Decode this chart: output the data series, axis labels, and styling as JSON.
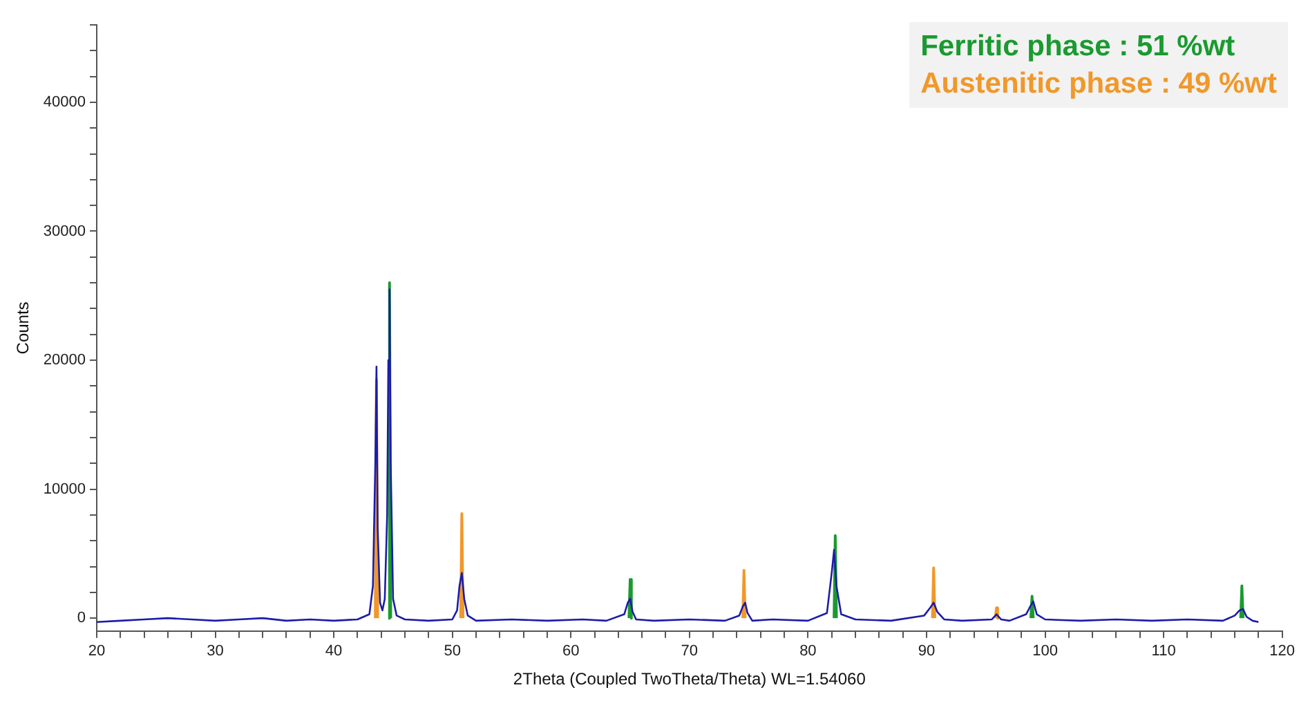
{
  "chart_data": {
    "type": "line",
    "xlabel": "2Theta (Coupled TwoTheta/Theta) WL=1.54060",
    "ylabel": "Counts",
    "xlim": [
      20,
      120
    ],
    "ylim": [
      -1000,
      46000
    ],
    "xticks": [
      20,
      {
        "value": 22,
        "label": null
      },
      {
        "value": 24,
        "label": null
      },
      {
        "value": 26,
        "label": null
      },
      {
        "value": 28,
        "label": null
      },
      30,
      {
        "value": 32,
        "label": null
      },
      {
        "value": 34,
        "label": null
      },
      {
        "value": 36,
        "label": null
      },
      {
        "value": 38,
        "label": null
      },
      40,
      {
        "value": 42,
        "label": null
      },
      {
        "value": 44,
        "label": null
      },
      {
        "value": 46,
        "label": null
      },
      {
        "value": 48,
        "label": null
      },
      50,
      {
        "value": 52,
        "label": null
      },
      {
        "value": 54,
        "label": null
      },
      {
        "value": 56,
        "label": null
      },
      {
        "value": 58,
        "label": null
      },
      60,
      {
        "value": 62,
        "label": null
      },
      {
        "value": 64,
        "label": null
      },
      {
        "value": 66,
        "label": null
      },
      {
        "value": 68,
        "label": null
      },
      70,
      {
        "value": 72,
        "label": null
      },
      {
        "value": 74,
        "label": null
      },
      {
        "value": 76,
        "label": null
      },
      {
        "value": 78,
        "label": null
      },
      80,
      {
        "value": 82,
        "label": null
      },
      {
        "value": 84,
        "label": null
      },
      {
        "value": 86,
        "label": null
      },
      {
        "value": 88,
        "label": null
      },
      90,
      {
        "value": 92,
        "label": null
      },
      {
        "value": 94,
        "label": null
      },
      {
        "value": 96,
        "label": null
      },
      {
        "value": 98,
        "label": null
      },
      100,
      {
        "value": 102,
        "label": null
      },
      {
        "value": 104,
        "label": null
      },
      {
        "value": 106,
        "label": null
      },
      {
        "value": 108,
        "label": null
      },
      110,
      {
        "value": 112,
        "label": null
      },
      {
        "value": 114,
        "label": null
      },
      {
        "value": 116,
        "label": null
      },
      {
        "value": 118,
        "label": null
      },
      120
    ],
    "yticks": [
      0,
      {
        "value": 2000,
        "label": null
      },
      {
        "value": 4000,
        "label": null
      },
      {
        "value": 6000,
        "label": null
      },
      {
        "value": 8000,
        "label": null
      },
      10000,
      {
        "value": 12000,
        "label": null
      },
      {
        "value": 14000,
        "label": null
      },
      {
        "value": 16000,
        "label": null
      },
      {
        "value": 18000,
        "label": null
      },
      20000,
      {
        "value": 22000,
        "label": null
      },
      {
        "value": 24000,
        "label": null
      },
      {
        "value": 26000,
        "label": null
      },
      {
        "value": 28000,
        "label": null
      },
      30000,
      {
        "value": 32000,
        "label": null
      },
      {
        "value": 34000,
        "label": null
      },
      {
        "value": 36000,
        "label": null
      },
      {
        "value": 38000,
        "label": null
      },
      40000,
      {
        "value": 42000,
        "label": null
      },
      {
        "value": 44000,
        "label": null
      },
      {
        "value": 46000,
        "label": null
      }
    ],
    "grid": false,
    "legend": false,
    "marker": "none",
    "line_style": "solid",
    "annotations": [
      "Ferritic phase : 51 %wt",
      "Austenitic phase : 49 %wt"
    ],
    "series": [
      {
        "color": "#1c1ca8",
        "x": [
          20,
          22,
          24,
          26,
          28,
          30,
          32,
          34,
          36,
          38,
          40,
          42,
          43.0,
          43.3,
          43.5,
          43.6,
          43.7,
          43.9,
          44.1,
          44.3,
          44.5,
          44.6,
          44.7,
          44.8,
          45.0,
          45.3,
          46,
          48,
          50,
          50.4,
          50.6,
          50.8,
          51.0,
          51.3,
          52,
          55,
          58,
          61,
          63,
          64.5,
          64.8,
          65.0,
          65.2,
          65.5,
          67,
          70,
          73,
          74.2,
          74.5,
          74.7,
          74.9,
          75.3,
          77,
          80,
          81.6,
          82.0,
          82.2,
          82.4,
          82.8,
          84,
          87,
          89.8,
          90.3,
          90.6,
          90.9,
          91.5,
          93,
          95.5,
          95.9,
          96.3,
          97,
          98.4,
          98.8,
          99.0,
          99.3,
          100,
          103,
          106,
          109,
          112,
          115,
          116.0,
          116.4,
          116.7,
          117.0,
          117.5,
          118
        ],
        "values": [
          -300,
          -200,
          -100,
          0,
          -100,
          -200,
          -100,
          0,
          -200,
          -100,
          -200,
          -100,
          300,
          2500,
          12000,
          19500,
          7000,
          1200,
          600,
          1500,
          8000,
          20000,
          25500,
          12000,
          1500,
          200,
          -100,
          -200,
          -100,
          600,
          2500,
          3500,
          1500,
          200,
          -200,
          -100,
          -200,
          -100,
          -200,
          300,
          1200,
          1500,
          500,
          -100,
          -200,
          -100,
          -200,
          200,
          900,
          1200,
          400,
          -200,
          -100,
          -200,
          400,
          3500,
          5300,
          2500,
          300,
          -100,
          -200,
          200,
          800,
          1200,
          500,
          -100,
          -200,
          -100,
          300,
          -100,
          -200,
          300,
          1000,
          1300,
          300,
          -100,
          -200,
          -100,
          -200,
          -100,
          -200,
          200,
          600,
          700,
          100,
          -200,
          -300
        ]
      },
      {
        "color": "#1a9a30",
        "x": [
          44.6,
          44.7,
          44.8,
          null,
          64.9,
          65.0,
          65.1,
          null,
          82.2,
          82.3,
          82.4,
          null,
          98.8,
          98.9,
          99.0,
          null,
          116.5,
          116.6,
          116.7
        ],
        "values": [
          0,
          26000,
          0,
          null,
          0,
          3000,
          0,
          null,
          0,
          6400,
          0,
          null,
          0,
          1700,
          0,
          null,
          0,
          2500,
          0
        ]
      },
      {
        "color": "#f0982a",
        "x": [
          43.5,
          43.6,
          43.7,
          null,
          50.7,
          50.8,
          50.9,
          null,
          74.5,
          74.6,
          74.7,
          null,
          90.5,
          90.6,
          90.7,
          null,
          95.8,
          95.9,
          96.0
        ],
        "values": [
          0,
          18500,
          0,
          null,
          0,
          8100,
          0,
          null,
          0,
          3700,
          0,
          null,
          0,
          3900,
          0,
          null,
          0,
          800,
          0
        ]
      }
    ]
  }
}
